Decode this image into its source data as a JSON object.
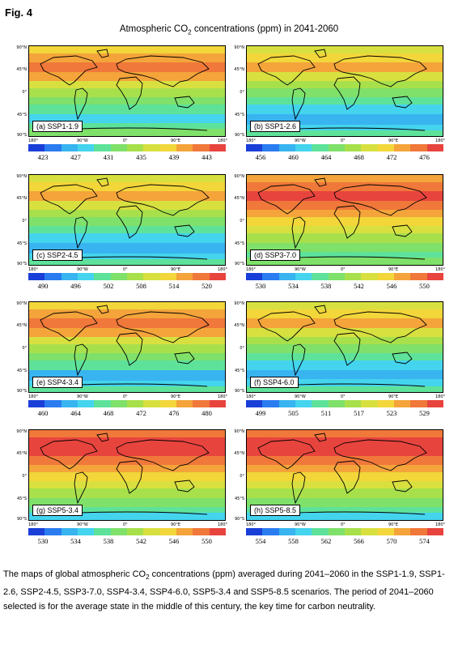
{
  "figure": {
    "label": "Fig. 4",
    "title_prefix": "Atmospheric CO",
    "title_sub": "2",
    "title_suffix": " concentrations (ppm) in 2041-2060"
  },
  "axes": {
    "lat_labels": [
      "90°N",
      "45°N",
      "0°",
      "45°S",
      "90°S"
    ],
    "lon_labels": [
      "180°",
      "90°W",
      "0°",
      "90°E",
      "180°"
    ]
  },
  "colorbar": [
    "#1a3fd8",
    "#2a7cf0",
    "#38b4f0",
    "#44d4ee",
    "#5ee29a",
    "#7fe06a",
    "#a8e04c",
    "#d8e040",
    "#f2d63a",
    "#f4a43a",
    "#f0783a",
    "#e8443e"
  ],
  "panels": [
    {
      "label": "(a) SSP1-1.9",
      "ticks": [
        "423",
        "427",
        "431",
        "435",
        "439",
        "443"
      ]
    },
    {
      "label": "(b) SSP1-2.6",
      "ticks": [
        "456",
        "460",
        "464",
        "468",
        "472",
        "476"
      ]
    },
    {
      "label": "(c) SSP2-4.5",
      "ticks": [
        "490",
        "496",
        "502",
        "508",
        "514",
        "520"
      ]
    },
    {
      "label": "(d) SSP3-7.0",
      "ticks": [
        "530",
        "534",
        "538",
        "542",
        "546",
        "550"
      ]
    },
    {
      "label": "(e) SSP4-3.4",
      "ticks": [
        "460",
        "464",
        "468",
        "472",
        "476",
        "480"
      ]
    },
    {
      "label": "(f) SSP4-6.0",
      "ticks": [
        "499",
        "505",
        "511",
        "517",
        "523",
        "529"
      ]
    },
    {
      "label": "(g) SSP5-3.4",
      "ticks": [
        "530",
        "534",
        "538",
        "542",
        "546",
        "550"
      ]
    },
    {
      "label": "(h) SSP5-8.5",
      "ticks": [
        "554",
        "558",
        "562",
        "566",
        "570",
        "574"
      ]
    }
  ],
  "caption": {
    "part1": "The maps of global atmospheric CO",
    "sub": "2",
    "part2": " concentrations (ppm) averaged during 2041–2060 in the SSP1-1.9, SSP1-2.6, SSP2-4.5, SSP3-7.0, SSP4-3.4, SSP4-6.0, SSP5-3.4 and SSP5-8.5 scenarios. The period of 2041–2060 selected is for the average state in the middle of this century, the key time for carbon neutrality."
  }
}
